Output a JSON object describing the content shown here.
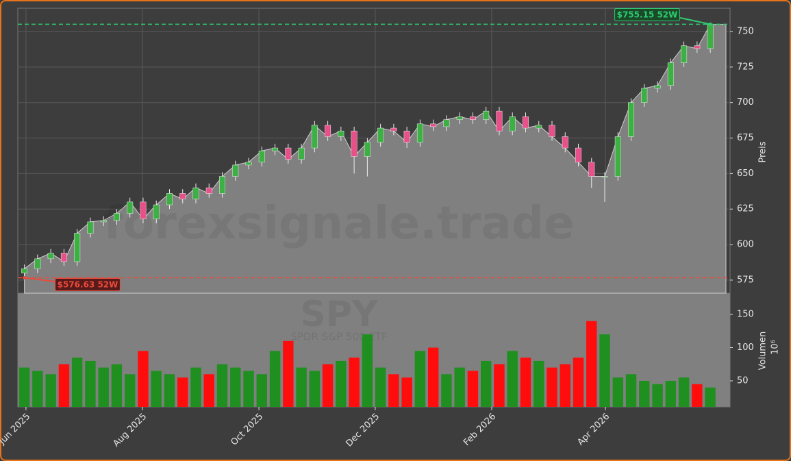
{
  "chart_data": {
    "type": "candlestick",
    "watermark": "forexsignale.trade",
    "symbol": "SPY",
    "symbol_name": "SPDR S&P 500 ETF",
    "ylabel": "Preis",
    "y2label": "Volumen",
    "y2unit": "10⁶",
    "grid": true,
    "up_color": "#3cb043",
    "down_color": "#e8508a",
    "volume_up_color": "#1f8f1f",
    "volume_down_color": "#ff0d0d",
    "area_color": "#808080",
    "xlim": [
      -0.5,
      53.5
    ],
    "xticks": [
      {
        "value": 0.12,
        "label": "Jun 2025"
      },
      {
        "value": 8.95,
        "label": "Aug 2025"
      },
      {
        "value": 17.78,
        "label": "Oct 2025"
      },
      {
        "value": 26.6,
        "label": "Dec 2025"
      },
      {
        "value": 35.43,
        "label": "Feb 2026"
      },
      {
        "value": 44.05,
        "label": "Apr 2026"
      }
    ],
    "ylim": [
      565.8,
      766.4
    ],
    "yticks": [
      575,
      600,
      625,
      650,
      675,
      700,
      725,
      750
    ],
    "y2lim": [
      10.8,
      182
    ],
    "y2ticks": [
      50,
      100,
      150
    ],
    "open": [
      580,
      583,
      590,
      594,
      588,
      608,
      616,
      617,
      622,
      630,
      618,
      628,
      636,
      632,
      640,
      636,
      648,
      656,
      658,
      666,
      668,
      660,
      668,
      684,
      676,
      680,
      662,
      672,
      682,
      680,
      672,
      685,
      683,
      688,
      690,
      688,
      694,
      680,
      690,
      682,
      684,
      676,
      668,
      658,
      648,
      648,
      676,
      700,
      710,
      712,
      728,
      740,
      738
    ],
    "high": [
      586,
      593,
      597,
      597,
      611,
      619,
      620,
      625,
      633,
      633,
      631,
      639,
      639,
      643,
      643,
      651,
      659,
      661,
      669,
      671,
      671,
      671,
      687,
      687,
      683,
      683,
      675,
      685,
      685,
      683,
      688,
      688,
      691,
      693,
      693,
      697,
      697,
      693,
      693,
      687,
      687,
      679,
      671,
      661,
      651,
      679,
      703,
      713,
      715,
      731,
      743,
      743,
      755.15
    ],
    "low": [
      576.63,
      580,
      587,
      585,
      585,
      605,
      613,
      614,
      619,
      615,
      615,
      625,
      629,
      629,
      633,
      633,
      645,
      653,
      655,
      663,
      657,
      657,
      665,
      673,
      673,
      650,
      648,
      669,
      677,
      668,
      669,
      680,
      680,
      685,
      685,
      685,
      677,
      677,
      679,
      679,
      673,
      665,
      655,
      640,
      630,
      645,
      673,
      697,
      707,
      709,
      725,
      735,
      735
    ],
    "close": [
      583,
      590,
      594,
      588,
      608,
      616,
      617,
      622,
      630,
      618,
      628,
      636,
      632,
      640,
      636,
      648,
      656,
      658,
      666,
      668,
      660,
      668,
      684,
      676,
      680,
      662,
      672,
      682,
      680,
      672,
      685,
      683,
      688,
      690,
      688,
      694,
      680,
      690,
      682,
      684,
      676,
      668,
      658,
      648,
      648,
      676,
      700,
      710,
      712,
      728,
      740,
      738,
      755
    ],
    "volume": [
      70,
      65,
      60,
      75,
      85,
      80,
      70,
      75,
      60,
      95,
      65,
      60,
      55,
      70,
      60,
      75,
      70,
      65,
      60,
      95,
      110,
      70,
      65,
      75,
      80,
      85,
      120,
      70,
      60,
      55,
      95,
      100,
      60,
      70,
      65,
      80,
      75,
      95,
      85,
      80,
      70,
      75,
      85,
      140,
      120,
      55,
      60,
      50,
      45,
      50,
      55,
      45,
      40
    ],
    "annotations": [
      {
        "label": "$755.15 52W",
        "value": 755.15,
        "color": "#2ecc71"
      },
      {
        "label": "$576.63 52W",
        "value": 576.63,
        "color": "#e74c3c"
      }
    ]
  }
}
